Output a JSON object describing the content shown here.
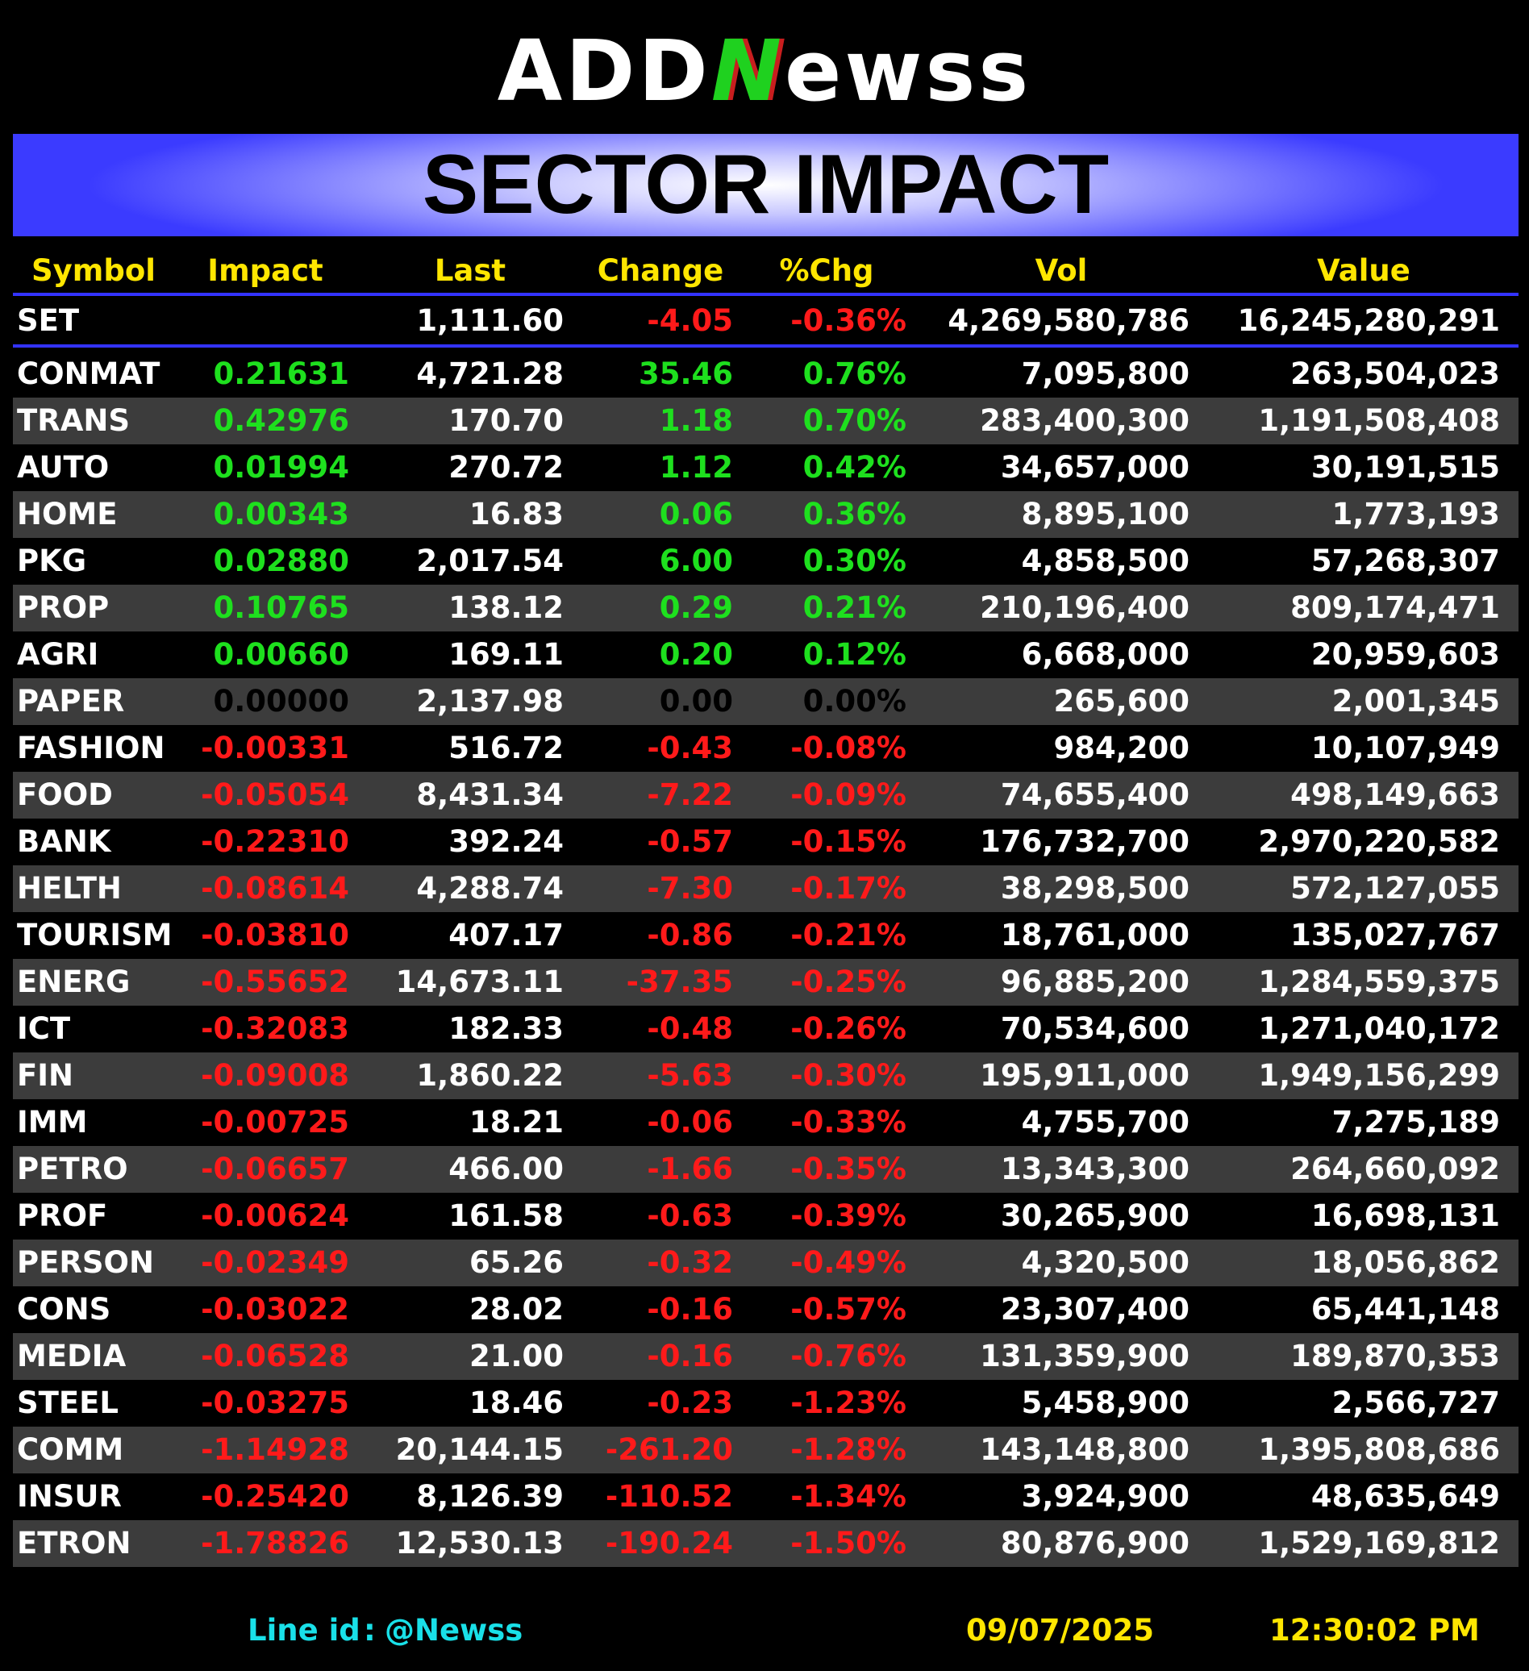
{
  "header": {
    "logo": [
      "ADD",
      "N",
      "ewss"
    ],
    "title": "SECTOR IMPACT"
  },
  "table": {
    "columns": [
      "Symbol",
      "Impact",
      "Last",
      "Change",
      "%Chg",
      "Vol",
      "Value"
    ],
    "index_row": [
      "SET",
      null,
      "1,111.60",
      "-4.05",
      "-0.36%",
      "4,269,580,786",
      "16,245,280,291"
    ],
    "rows": [
      [
        "CONMAT",
        "0.21631",
        "4,721.28",
        "35.46",
        "0.76%",
        "7,095,800",
        "263,504,023"
      ],
      [
        "TRANS",
        "0.42976",
        "170.70",
        "1.18",
        "0.70%",
        "283,400,300",
        "1,191,508,408"
      ],
      [
        "AUTO",
        "0.01994",
        "270.72",
        "1.12",
        "0.42%",
        "34,657,000",
        "30,191,515"
      ],
      [
        "HOME",
        "0.00343",
        "16.83",
        "0.06",
        "0.36%",
        "8,895,100",
        "1,773,193"
      ],
      [
        "PKG",
        "0.02880",
        "2,017.54",
        "6.00",
        "0.30%",
        "4,858,500",
        "57,268,307"
      ],
      [
        "PROP",
        "0.10765",
        "138.12",
        "0.29",
        "0.21%",
        "210,196,400",
        "809,174,471"
      ],
      [
        "AGRI",
        "0.00660",
        "169.11",
        "0.20",
        "0.12%",
        "6,668,000",
        "20,959,603"
      ],
      [
        "PAPER",
        "0.00000",
        "2,137.98",
        "0.00",
        "0.00%",
        "265,600",
        "2,001,345"
      ],
      [
        "FASHION",
        "-0.00331",
        "516.72",
        "-0.43",
        "-0.08%",
        "984,200",
        "10,107,949"
      ],
      [
        "FOOD",
        "-0.05054",
        "8,431.34",
        "-7.22",
        "-0.09%",
        "74,655,400",
        "498,149,663"
      ],
      [
        "BANK",
        "-0.22310",
        "392.24",
        "-0.57",
        "-0.15%",
        "176,732,700",
        "2,970,220,582"
      ],
      [
        "HELTH",
        "-0.08614",
        "4,288.74",
        "-7.30",
        "-0.17%",
        "38,298,500",
        "572,127,055"
      ],
      [
        "TOURISM",
        "-0.03810",
        "407.17",
        "-0.86",
        "-0.21%",
        "18,761,000",
        "135,027,767"
      ],
      [
        "ENERG",
        "-0.55652",
        "14,673.11",
        "-37.35",
        "-0.25%",
        "96,885,200",
        "1,284,559,375"
      ],
      [
        "ICT",
        "-0.32083",
        "182.33",
        "-0.48",
        "-0.26%",
        "70,534,600",
        "1,271,040,172"
      ],
      [
        "FIN",
        "-0.09008",
        "1,860.22",
        "-5.63",
        "-0.30%",
        "195,911,000",
        "1,949,156,299"
      ],
      [
        "IMM",
        "-0.00725",
        "18.21",
        "-0.06",
        "-0.33%",
        "4,755,700",
        "7,275,189"
      ],
      [
        "PETRO",
        "-0.06657",
        "466.00",
        "-1.66",
        "-0.35%",
        "13,343,300",
        "264,660,092"
      ],
      [
        "PROF",
        "-0.00624",
        "161.58",
        "-0.63",
        "-0.39%",
        "30,265,900",
        "16,698,131"
      ],
      [
        "PERSON",
        "-0.02349",
        "65.26",
        "-0.32",
        "-0.49%",
        "4,320,500",
        "18,056,862"
      ],
      [
        "CONS",
        "-0.03022",
        "28.02",
        "-0.16",
        "-0.57%",
        "23,307,400",
        "65,441,148"
      ],
      [
        "MEDIA",
        "-0.06528",
        "21.00",
        "-0.16",
        "-0.76%",
        "131,359,900",
        "189,870,353"
      ],
      [
        "STEEL",
        "-0.03275",
        "18.46",
        "-0.23",
        "-1.23%",
        "5,458,900",
        "2,566,727"
      ],
      [
        "COMM",
        "-1.14928",
        "20,144.15",
        "-261.20",
        "-1.28%",
        "143,148,800",
        "1,395,808,686"
      ],
      [
        "INSUR",
        "-0.25420",
        "8,126.39",
        "-110.52",
        "-1.34%",
        "3,924,900",
        "48,635,649"
      ],
      [
        "ETRON",
        "-1.78826",
        "12,530.13",
        "-190.24",
        "-1.50%",
        "80,876,900",
        "1,529,169,812"
      ]
    ]
  },
  "footer": {
    "line_label": "Line id",
    "separator": ":",
    "line_id": "@Newss",
    "date": "09/07/2025",
    "time": "12:30:02 PM"
  }
}
